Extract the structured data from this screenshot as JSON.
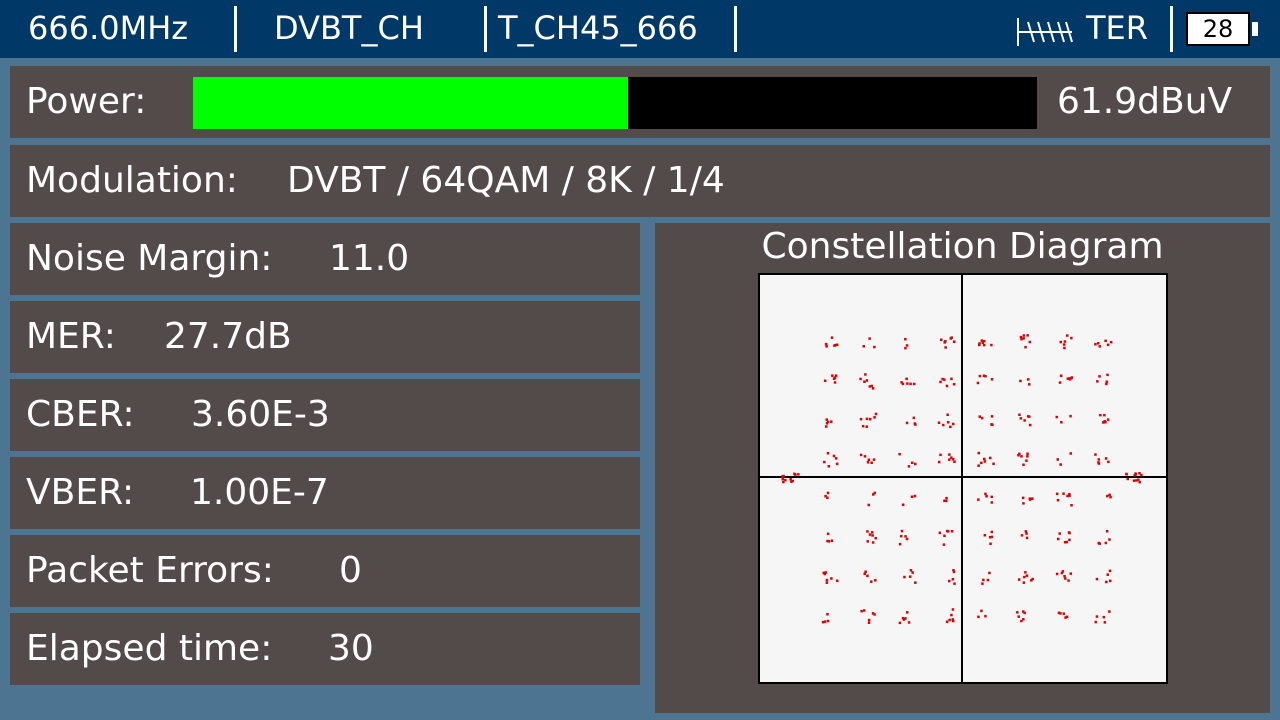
{
  "header": {
    "frequency": "666.0MHz",
    "channel_type": "DVBT_CH",
    "channel_name": "T_CH45_666",
    "band": "TER",
    "battery": "28"
  },
  "power": {
    "label": "Power:",
    "value": "61.9dBuV",
    "level_fraction": 0.515,
    "bar_color": "#00ff00"
  },
  "modulation": {
    "label": "Modulation:",
    "value": "DVBT / 64QAM / 8K / 1/4"
  },
  "noise_margin": {
    "label": "Noise Margin:",
    "value": "11.0"
  },
  "mer": {
    "label": "MER:",
    "value": "27.7dB"
  },
  "cber": {
    "label": "CBER:",
    "value": "3.60E-3"
  },
  "vber": {
    "label": "VBER:",
    "value": "1.00E-7"
  },
  "packet_errors": {
    "label": "Packet Errors:",
    "value": "0"
  },
  "elapsed": {
    "label": "Elapsed time:",
    "value": "30"
  },
  "constellation": {
    "title": "Constellation Diagram",
    "point_color": "#e00000",
    "grid_levels": 8
  }
}
